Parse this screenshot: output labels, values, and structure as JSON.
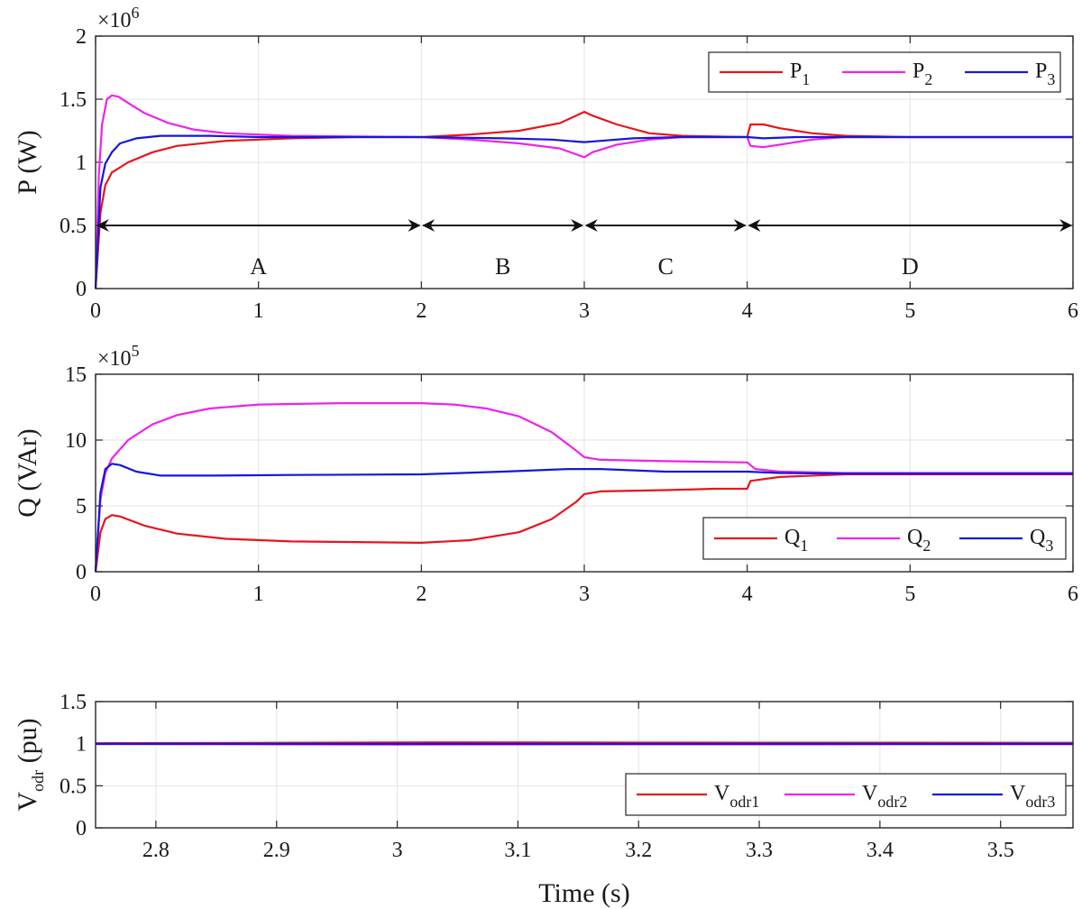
{
  "chart_data": [
    {
      "type": "line",
      "ylabel": "P (W)",
      "xlim": [
        0,
        6
      ],
      "ylim": [
        0,
        2
      ],
      "x_ticks": [
        "0",
        "1",
        "2",
        "3",
        "4",
        "5",
        "6"
      ],
      "y_ticks": [
        "0",
        "0.5",
        "1",
        "1.5",
        "2"
      ],
      "exponent": {
        "base": "×10",
        "power": "6"
      },
      "grid": true,
      "legend_position": "top-right",
      "series": [
        {
          "name": "P",
          "sub": "1",
          "color": "#e8141c",
          "points": [
            [
              0,
              0
            ],
            [
              0.03,
              0.6
            ],
            [
              0.06,
              0.82
            ],
            [
              0.1,
              0.92
            ],
            [
              0.2,
              1.0
            ],
            [
              0.35,
              1.08
            ],
            [
              0.5,
              1.13
            ],
            [
              0.8,
              1.17
            ],
            [
              1.2,
              1.19
            ],
            [
              1.6,
              1.2
            ],
            [
              2.0,
              1.2
            ],
            [
              2.3,
              1.22
            ],
            [
              2.6,
              1.25
            ],
            [
              2.85,
              1.31
            ],
            [
              2.95,
              1.37
            ],
            [
              3.0,
              1.4
            ],
            [
              3.05,
              1.37
            ],
            [
              3.2,
              1.3
            ],
            [
              3.4,
              1.23
            ],
            [
              3.6,
              1.21
            ],
            [
              4.0,
              1.2
            ],
            [
              4.02,
              1.3
            ],
            [
              4.1,
              1.3
            ],
            [
              4.2,
              1.27
            ],
            [
              4.4,
              1.23
            ],
            [
              4.6,
              1.21
            ],
            [
              5.0,
              1.2
            ],
            [
              6.0,
              1.2
            ]
          ]
        },
        {
          "name": "P",
          "sub": "2",
          "color": "#ee22ee",
          "points": [
            [
              0,
              0
            ],
            [
              0.02,
              0.9
            ],
            [
              0.04,
              1.3
            ],
            [
              0.07,
              1.5
            ],
            [
              0.1,
              1.53
            ],
            [
              0.14,
              1.52
            ],
            [
              0.2,
              1.47
            ],
            [
              0.3,
              1.39
            ],
            [
              0.45,
              1.31
            ],
            [
              0.6,
              1.26
            ],
            [
              0.8,
              1.23
            ],
            [
              1.2,
              1.21
            ],
            [
              2.0,
              1.2
            ],
            [
              2.3,
              1.18
            ],
            [
              2.6,
              1.15
            ],
            [
              2.85,
              1.11
            ],
            [
              3.0,
              1.04
            ],
            [
              3.05,
              1.08
            ],
            [
              3.2,
              1.14
            ],
            [
              3.4,
              1.18
            ],
            [
              3.6,
              1.2
            ],
            [
              4.0,
              1.2
            ],
            [
              4.02,
              1.13
            ],
            [
              4.1,
              1.12
            ],
            [
              4.2,
              1.14
            ],
            [
              4.4,
              1.18
            ],
            [
              4.6,
              1.2
            ],
            [
              5.0,
              1.2
            ],
            [
              6.0,
              1.2
            ]
          ]
        },
        {
          "name": "P",
          "sub": "3",
          "color": "#1616dc",
          "points": [
            [
              0,
              0
            ],
            [
              0.03,
              0.8
            ],
            [
              0.06,
              0.99
            ],
            [
              0.1,
              1.08
            ],
            [
              0.15,
              1.15
            ],
            [
              0.25,
              1.19
            ],
            [
              0.4,
              1.21
            ],
            [
              0.7,
              1.21
            ],
            [
              1.0,
              1.2
            ],
            [
              2.0,
              1.2
            ],
            [
              2.5,
              1.19
            ],
            [
              2.8,
              1.18
            ],
            [
              3.0,
              1.16
            ],
            [
              3.1,
              1.17
            ],
            [
              3.3,
              1.19
            ],
            [
              3.6,
              1.2
            ],
            [
              4.0,
              1.2
            ],
            [
              4.1,
              1.19
            ],
            [
              4.3,
              1.2
            ],
            [
              6.0,
              1.2
            ]
          ]
        }
      ],
      "regions": [
        {
          "label": "A",
          "from": 0,
          "to": 2
        },
        {
          "label": "B",
          "from": 2,
          "to": 3
        },
        {
          "label": "C",
          "from": 3,
          "to": 4
        },
        {
          "label": "D",
          "from": 4,
          "to": 6
        }
      ],
      "region_arrow_y": 0.5
    },
    {
      "type": "line",
      "ylabel": "Q (VAr)",
      "xlim": [
        0,
        6
      ],
      "ylim": [
        0,
        15
      ],
      "x_ticks": [
        "0",
        "1",
        "2",
        "3",
        "4",
        "5",
        "6"
      ],
      "y_ticks": [
        "0",
        "5",
        "10",
        "15"
      ],
      "exponent": {
        "base": "×10",
        "power": "5"
      },
      "grid": true,
      "legend_position": "bottom-right",
      "series": [
        {
          "name": "Q",
          "sub": "1",
          "color": "#e8141c",
          "points": [
            [
              0,
              0
            ],
            [
              0.03,
              3.0
            ],
            [
              0.06,
              4.0
            ],
            [
              0.1,
              4.3
            ],
            [
              0.15,
              4.2
            ],
            [
              0.3,
              3.5
            ],
            [
              0.5,
              2.9
            ],
            [
              0.8,
              2.5
            ],
            [
              1.2,
              2.3
            ],
            [
              1.6,
              2.25
            ],
            [
              2.0,
              2.2
            ],
            [
              2.3,
              2.4
            ],
            [
              2.6,
              3.0
            ],
            [
              2.8,
              4.0
            ],
            [
              2.95,
              5.3
            ],
            [
              3.0,
              5.9
            ],
            [
              3.1,
              6.1
            ],
            [
              3.5,
              6.2
            ],
            [
              3.8,
              6.3
            ],
            [
              4.0,
              6.3
            ],
            [
              4.02,
              6.9
            ],
            [
              4.2,
              7.2
            ],
            [
              4.6,
              7.4
            ],
            [
              5.0,
              7.4
            ],
            [
              6.0,
              7.4
            ]
          ]
        },
        {
          "name": "Q",
          "sub": "2",
          "color": "#ee22ee",
          "points": [
            [
              0,
              0
            ],
            [
              0.03,
              5.5
            ],
            [
              0.06,
              7.5
            ],
            [
              0.1,
              8.6
            ],
            [
              0.2,
              10.0
            ],
            [
              0.35,
              11.2
            ],
            [
              0.5,
              11.9
            ],
            [
              0.7,
              12.4
            ],
            [
              1.0,
              12.7
            ],
            [
              1.5,
              12.8
            ],
            [
              2.0,
              12.8
            ],
            [
              2.2,
              12.7
            ],
            [
              2.4,
              12.4
            ],
            [
              2.6,
              11.8
            ],
            [
              2.8,
              10.6
            ],
            [
              2.95,
              9.2
            ],
            [
              3.0,
              8.7
            ],
            [
              3.1,
              8.5
            ],
            [
              3.5,
              8.4
            ],
            [
              4.0,
              8.3
            ],
            [
              4.05,
              7.8
            ],
            [
              4.2,
              7.6
            ],
            [
              4.6,
              7.5
            ],
            [
              6.0,
              7.5
            ]
          ]
        },
        {
          "name": "Q",
          "sub": "3",
          "color": "#1616dc",
          "points": [
            [
              0,
              0
            ],
            [
              0.03,
              6.0
            ],
            [
              0.06,
              7.8
            ],
            [
              0.1,
              8.2
            ],
            [
              0.15,
              8.1
            ],
            [
              0.25,
              7.6
            ],
            [
              0.4,
              7.3
            ],
            [
              0.7,
              7.3
            ],
            [
              1.2,
              7.35
            ],
            [
              2.0,
              7.4
            ],
            [
              2.5,
              7.6
            ],
            [
              2.9,
              7.8
            ],
            [
              3.1,
              7.8
            ],
            [
              3.5,
              7.6
            ],
            [
              4.0,
              7.6
            ],
            [
              4.2,
              7.5
            ],
            [
              4.6,
              7.45
            ],
            [
              6.0,
              7.45
            ]
          ]
        }
      ]
    },
    {
      "type": "line",
      "xlabel": "Time (s)",
      "ylabel": "V",
      "ylabel_sub": "odr",
      "ylabel_suffix": " (pu)",
      "xlim": [
        2.75,
        3.56
      ],
      "ylim": [
        0,
        1.5
      ],
      "x_ticks": [
        "2.8",
        "2.9",
        "3",
        "3.1",
        "3.2",
        "3.3",
        "3.4",
        "3.5"
      ],
      "y_ticks": [
        "0",
        "0.5",
        "1",
        "1.5"
      ],
      "grid": true,
      "legend_position": "bottom-right",
      "series": [
        {
          "name": "V",
          "sub": "odr1",
          "color": "#e8141c",
          "points": [
            [
              2.75,
              1.005
            ],
            [
              2.9,
              1.01
            ],
            [
              3.0,
              1.015
            ],
            [
              3.03,
              1.016
            ],
            [
              3.2,
              1.012
            ],
            [
              3.56,
              1.01
            ]
          ]
        },
        {
          "name": "V",
          "sub": "odr2",
          "color": "#ee22ee",
          "points": [
            [
              2.75,
              0.995
            ],
            [
              3.0,
              0.99
            ],
            [
              3.2,
              0.992
            ],
            [
              3.56,
              0.993
            ]
          ]
        },
        {
          "name": "V",
          "sub": "odr3",
          "color": "#1616dc",
          "points": [
            [
              2.75,
              0.998
            ],
            [
              3.0,
              0.997
            ],
            [
              3.56,
              0.998
            ]
          ]
        }
      ]
    }
  ]
}
